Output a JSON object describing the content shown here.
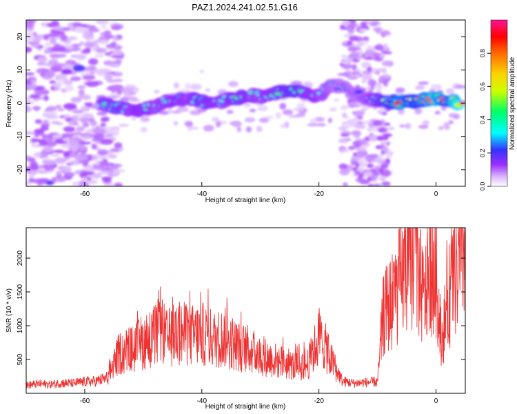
{
  "page_title": "PAZ1.2024.241.02.51.G16",
  "chart_data": [
    {
      "type": "heatmap",
      "title": "PAZ1.2024.241.02.51.G16",
      "xlabel": "Height of straight line (km)",
      "ylabel": "Frequency (Hz)",
      "xlim": [
        -70,
        5
      ],
      "ylim": [
        -25,
        25
      ],
      "x_ticks": [
        -60,
        -40,
        -20,
        0
      ],
      "x_tick_labels": [
        "-60",
        "-40",
        "-20",
        "0"
      ],
      "y_ticks": [
        -20,
        -10,
        0,
        10,
        20
      ],
      "y_tick_labels": [
        "-20",
        "-10",
        "0",
        "10",
        "20"
      ],
      "colorbar": {
        "label": "Normalized spectral amplitude",
        "range": [
          0,
          1
        ],
        "ticks": [
          0.0,
          0.2,
          0.4,
          0.6,
          0.8
        ],
        "tick_labels": [
          "0.0",
          "0.2",
          "0.4",
          "0.6",
          "0.8"
        ],
        "colors": [
          "#ffffff",
          "#d9b3ff",
          "#9b30ff",
          "#3333ff",
          "#00ffff",
          "#00ff66",
          "#ccff00",
          "#ffd000",
          "#ff6a00",
          "#ff0000",
          "#ff1493"
        ]
      },
      "ridge": [
        {
          "x": -57,
          "y": 0.0,
          "a": 0.35
        },
        {
          "x": -54,
          "y": -1.5,
          "a": 0.45
        },
        {
          "x": -52,
          "y": -2.0,
          "a": 0.35
        },
        {
          "x": -50,
          "y": -1.8,
          "a": 0.4
        },
        {
          "x": -48,
          "y": -1.0,
          "a": 0.35
        },
        {
          "x": -46,
          "y": 0.5,
          "a": 0.35
        },
        {
          "x": -44,
          "y": 1.0,
          "a": 0.4
        },
        {
          "x": -42,
          "y": 1.5,
          "a": 0.35
        },
        {
          "x": -40,
          "y": 0.5,
          "a": 0.45
        },
        {
          "x": -38,
          "y": -0.5,
          "a": 0.4
        },
        {
          "x": -36,
          "y": 1.0,
          "a": 0.35
        },
        {
          "x": -34,
          "y": 1.5,
          "a": 0.45
        },
        {
          "x": -32,
          "y": 2.5,
          "a": 0.4
        },
        {
          "x": -30,
          "y": 2.0,
          "a": 0.35
        },
        {
          "x": -28,
          "y": 2.8,
          "a": 0.4
        },
        {
          "x": -26,
          "y": 3.5,
          "a": 0.45
        },
        {
          "x": -24,
          "y": 4.0,
          "a": 0.5
        },
        {
          "x": -22,
          "y": 3.0,
          "a": 0.4
        },
        {
          "x": -20,
          "y": 2.0,
          "a": 0.35
        },
        {
          "x": -18,
          "y": 5.5,
          "a": 0.3
        },
        {
          "x": -16,
          "y": 5.0,
          "a": 0.25
        },
        {
          "x": -12,
          "y": 1.5,
          "a": 0.3
        },
        {
          "x": -10,
          "y": 1.0,
          "a": 0.4
        },
        {
          "x": -8,
          "y": 0.5,
          "a": 0.55
        },
        {
          "x": -6,
          "y": 0.2,
          "a": 0.75
        },
        {
          "x": -4,
          "y": 0.5,
          "a": 0.6
        },
        {
          "x": -2,
          "y": 1.0,
          "a": 0.7
        },
        {
          "x": 0,
          "y": 1.5,
          "a": 0.8
        },
        {
          "x": 2,
          "y": 1.0,
          "a": 0.65
        },
        {
          "x": 4,
          "y": 0.0,
          "a": 0.9
        }
      ]
    },
    {
      "type": "line",
      "xlabel": "Height of straight line (km)",
      "ylabel": "SNR (10 * v/v)",
      "xlim": [
        -70,
        5
      ],
      "ylim": [
        0,
        2450
      ],
      "x_ticks": [
        -60,
        -40,
        -20,
        0
      ],
      "x_tick_labels": [
        "-60",
        "-40",
        "-20",
        "0"
      ],
      "y_ticks": [
        500,
        1000,
        1500,
        2000
      ],
      "y_tick_labels": [
        "500",
        "1000",
        "1500",
        "2000"
      ],
      "line_color": "#ee3333",
      "series": [
        {
          "x": [
            -70,
            -68,
            -66,
            -64,
            -62,
            -60,
            -58,
            -56,
            -55,
            -54,
            -52,
            -50,
            -48,
            -47,
            -46,
            -44,
            -42,
            -40,
            -38,
            -36,
            -34,
            -32,
            -30,
            -28,
            -26,
            -24,
            -22,
            -21,
            -20,
            -19,
            -18,
            -17,
            -16,
            -14,
            -12,
            -10,
            -9,
            -8,
            -7,
            -6,
            -5,
            -4,
            -3.5,
            -3,
            -2,
            -1,
            0,
            0.5,
            1,
            2,
            3,
            4,
            5
          ],
          "y": [
            120,
            140,
            130,
            150,
            150,
            170,
            180,
            230,
            450,
            600,
            650,
            750,
            850,
            950,
            800,
            900,
            850,
            880,
            800,
            820,
            700,
            650,
            550,
            500,
            450,
            400,
            420,
            600,
            850,
            700,
            500,
            350,
            180,
            150,
            160,
            170,
            1150,
            1300,
            1450,
            1650,
            1850,
            2000,
            2200,
            1700,
            1350,
            1900,
            1700,
            1200,
            800,
            1350,
            1700,
            1800,
            2300
          ]
        }
      ]
    }
  ]
}
